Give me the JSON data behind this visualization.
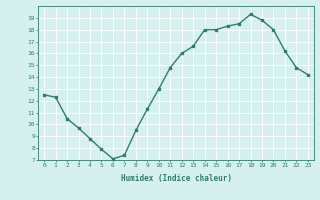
{
  "x": [
    0,
    1,
    2,
    3,
    4,
    5,
    6,
    7,
    8,
    9,
    10,
    11,
    12,
    13,
    14,
    15,
    16,
    17,
    18,
    19,
    20,
    21,
    22,
    23
  ],
  "y": [
    12.5,
    12.3,
    10.5,
    9.7,
    8.8,
    7.9,
    7.1,
    7.4,
    9.5,
    11.3,
    13.0,
    14.8,
    16.0,
    16.6,
    18.0,
    18.0,
    18.3,
    18.5,
    19.3,
    18.8,
    18.0,
    16.2,
    14.8,
    14.2
  ],
  "xlabel": "Humidex (Indice chaleur)",
  "xlim": [
    -0.5,
    23.5
  ],
  "ylim": [
    7,
    20
  ],
  "yticks": [
    7,
    8,
    9,
    10,
    11,
    12,
    13,
    14,
    15,
    16,
    17,
    18,
    19
  ],
  "xticks": [
    0,
    1,
    2,
    3,
    4,
    5,
    6,
    7,
    8,
    9,
    10,
    11,
    12,
    13,
    14,
    15,
    16,
    17,
    18,
    19,
    20,
    21,
    22,
    23
  ],
  "line_color": "#2e7d6e",
  "marker_color": "#2e7d6e",
  "bg_color": "#d6f0f0",
  "grid_color": "#ffffff",
  "tick_color": "#2e7d6e",
  "label_color": "#2e7d6e",
  "font_family": "monospace"
}
